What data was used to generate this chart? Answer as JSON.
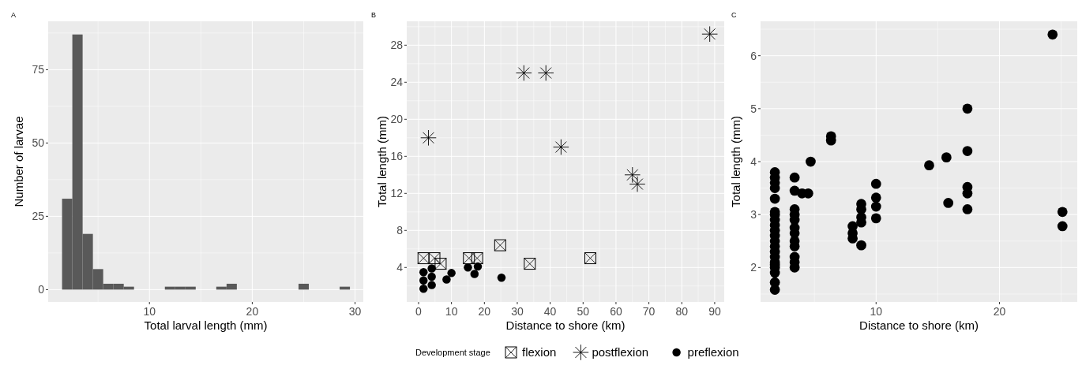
{
  "chart_data": [
    {
      "type": "histogram",
      "title": "A",
      "xlabel": "Total larval length (mm)",
      "ylabel": "Number of larvae",
      "color": "#595959",
      "bins": [
        1.5,
        2.5,
        3.5,
        4.5,
        5.5,
        6.5,
        7.5,
        8.5,
        9.5,
        10.5,
        11.5,
        12.5,
        13.5,
        14.5,
        15.5,
        16.5,
        17.5,
        18.5,
        19.5,
        20.5,
        21.5,
        22.5,
        23.5,
        24.5,
        25.5,
        26.5,
        27.5,
        28.5,
        29.5
      ],
      "values": [
        31,
        87,
        19,
        7,
        2,
        2,
        1,
        0,
        0,
        0,
        1,
        1,
        1,
        0,
        0,
        1,
        2,
        0,
        0,
        0,
        0,
        0,
        0,
        2,
        0,
        0,
        0,
        1
      ],
      "xlim": [
        0.15,
        30.8
      ],
      "ylim": [
        -4.2,
        91.5
      ],
      "xticks": [
        10,
        20,
        30
      ],
      "yticks": [
        0,
        25,
        50,
        75
      ],
      "grid": true
    },
    {
      "type": "scatter",
      "title": "B",
      "xlabel": "Distance to shore (km)",
      "ylabel": "Total length (mm)",
      "legend_title": "Development stage",
      "legend": "bottom",
      "grid": true,
      "xlim": [
        -3.6,
        92.9
      ],
      "ylim": [
        0.28,
        30.58
      ],
      "xticks": [
        0,
        10,
        20,
        30,
        40,
        50,
        60,
        70,
        80,
        90
      ],
      "yticks": [
        4,
        8,
        12,
        16,
        20,
        24,
        28
      ],
      "series": [
        {
          "name": "flexion",
          "color": "#000000",
          "marker": "square",
          "x": [
            1.5,
            4.8,
            6.7,
            15.3,
            17.8,
            24.8,
            33.8,
            52.2
          ],
          "values": [
            5,
            5,
            4.4,
            5,
            5,
            6.4,
            4.4,
            5
          ]
        },
        {
          "name": "postflexion",
          "color": "#000000",
          "marker": "cross",
          "x": [
            3,
            32,
            38.7,
            43.3,
            65,
            66.5,
            88.5
          ],
          "values": [
            18,
            25,
            25,
            17,
            14,
            13,
            29.2
          ]
        },
        {
          "name": "preflexion",
          "color": "#000000",
          "marker": "circle",
          "x": [
            1.5,
            1.5,
            1.5,
            4,
            4,
            4,
            8.5,
            10,
            15,
            17,
            18,
            25.2
          ],
          "values": [
            1.7,
            2.6,
            3.5,
            2.1,
            3.0,
            3.9,
            2.7,
            3.4,
            4.0,
            3.3,
            4.1,
            2.9
          ]
        }
      ]
    },
    {
      "type": "scatter",
      "title": "C",
      "xlabel": "Distance to shore (km)",
      "ylabel": "Total length (mm)",
      "grid": true,
      "xlim": [
        0.64,
        26.3
      ],
      "ylim": [
        1.35,
        6.65
      ],
      "xticks": [
        10,
        20
      ],
      "yticks": [
        2,
        3,
        4,
        5,
        6
      ],
      "series": [
        {
          "color": "#000000",
          "marker": "circle",
          "x": [
            1.8,
            1.8,
            1.8,
            1.8,
            1.8,
            1.8,
            1.8,
            1.8,
            1.8,
            1.8,
            1.8,
            1.8,
            1.8,
            1.8,
            1.8,
            1.8,
            1.8,
            1.8,
            1.8,
            1.8,
            1.8,
            3.4,
            3.4,
            3.4,
            3.4,
            3.4,
            3.4,
            3.4,
            3.4,
            3.4,
            3.4,
            3.4,
            3.4,
            4.0,
            4.5,
            4.7,
            6.35,
            6.35,
            8.1,
            8.1,
            8.1,
            8.8,
            8.8,
            8.8,
            8.8,
            8.8,
            10,
            10,
            10,
            10,
            14.3,
            15.7,
            15.85,
            17.4,
            17.4,
            17.4,
            17.4,
            17.4,
            24.3,
            25.1,
            25.1
          ],
          "values": [
            1.58,
            1.72,
            1.9,
            2.0,
            2.05,
            2.1,
            2.2,
            2.3,
            2.4,
            2.5,
            2.6,
            2.7,
            2.8,
            2.9,
            3.0,
            3.05,
            3.3,
            3.5,
            3.6,
            3.7,
            3.8,
            2.0,
            2.1,
            2.2,
            2.4,
            2.5,
            2.65,
            2.75,
            2.9,
            3.0,
            3.1,
            3.45,
            3.7,
            3.4,
            3.4,
            4.0,
            4.4,
            4.48,
            2.55,
            2.65,
            2.78,
            2.42,
            2.85,
            2.95,
            3.1,
            3.2,
            2.93,
            3.15,
            3.32,
            3.58,
            3.93,
            4.08,
            3.22,
            5.0,
            4.2,
            3.52,
            3.4,
            3.1,
            6.4,
            3.05,
            2.78
          ]
        }
      ]
    }
  ]
}
